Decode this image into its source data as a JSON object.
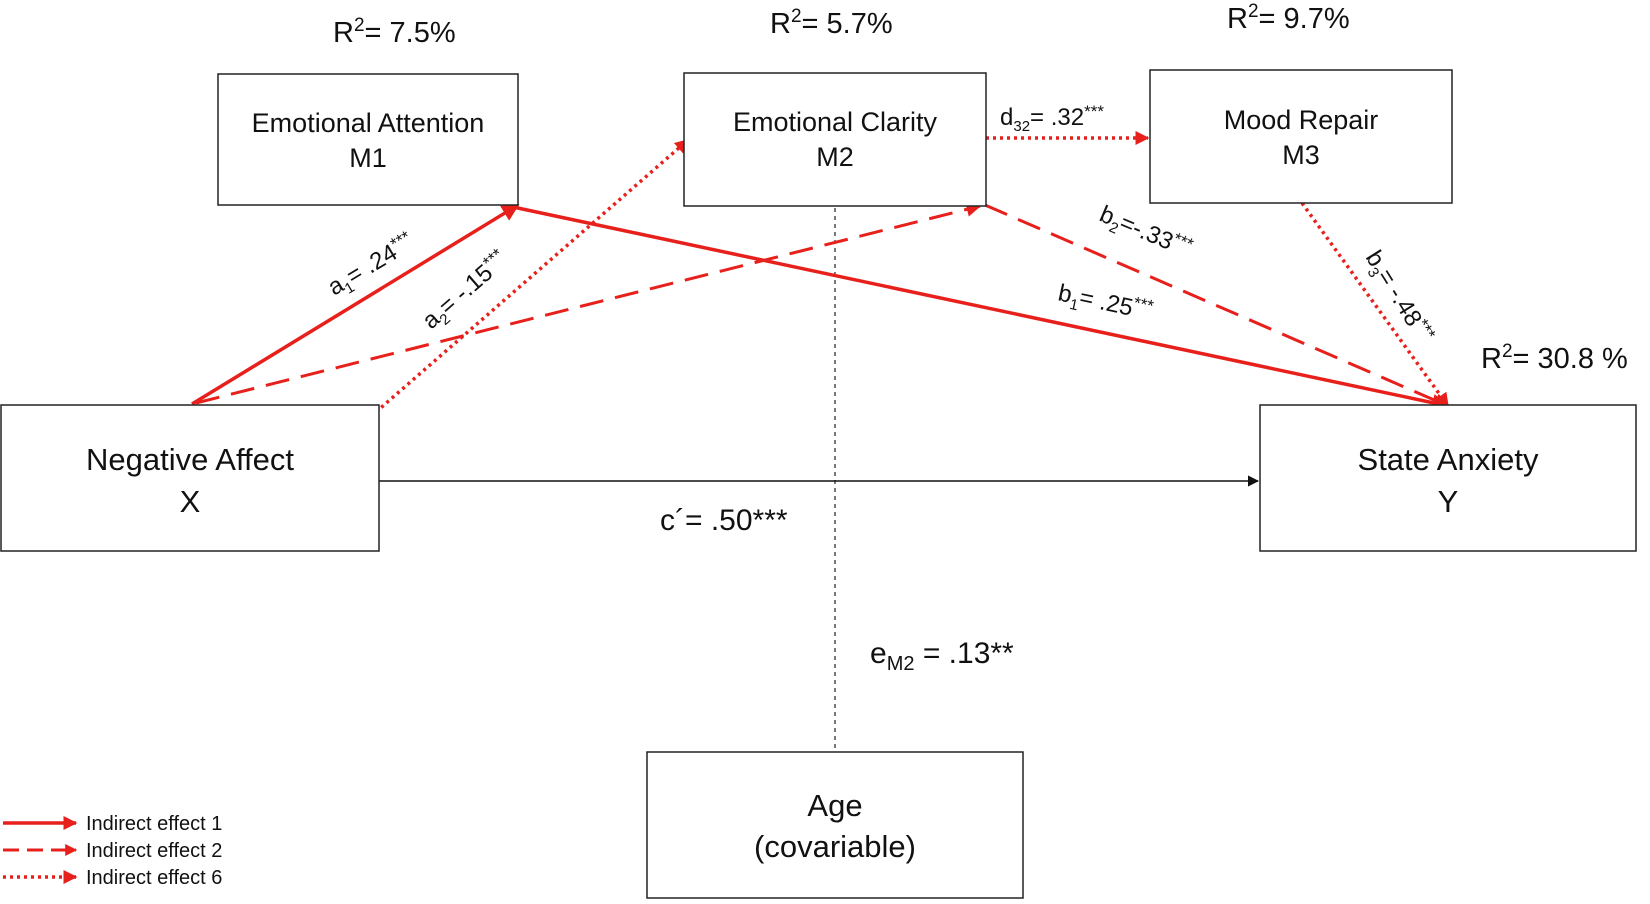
{
  "boxes": {
    "m1": {
      "title": "Emotional Attention",
      "sub": "M1"
    },
    "m2": {
      "title": "Emotional Clarity",
      "sub": "M2"
    },
    "m3": {
      "title": "Mood Repair",
      "sub": "M3"
    },
    "x": {
      "title": "Negative Affect",
      "sub": "X"
    },
    "y": {
      "title": "State Anxiety",
      "sub": "Y"
    },
    "age": {
      "title": "Age",
      "sub": "(covariable)"
    }
  },
  "r2": {
    "m1": {
      "prefix": "R",
      "sup": "2",
      "value": "= 7.5%"
    },
    "m2": {
      "prefix": "R",
      "sup": "2",
      "value": "= 5.7%"
    },
    "m3": {
      "prefix": "R",
      "sup": "2",
      "value": "= 9.7%"
    },
    "y": {
      "prefix": "R",
      "sup": "2",
      "value": "= 30.8 %"
    }
  },
  "paths": {
    "a1": {
      "sym": "a",
      "sub": "1",
      "value": "= .24",
      "stars": "***"
    },
    "a2": {
      "sym": "a",
      "sub": "2",
      "value": "= -.15",
      "stars": "***"
    },
    "b1": {
      "sym": "b",
      "sub": "1",
      "value": "= .25",
      "stars": "***"
    },
    "b2": {
      "sym": "b",
      "sub": "2",
      "value": "=-.33",
      "stars": "***"
    },
    "b3": {
      "sym": "b",
      "sub": "3",
      "value": "= -.48",
      "stars": "***"
    },
    "d32": {
      "sym": "d",
      "sub": "32",
      "value": "= .32",
      "stars": "***"
    },
    "c_prime": {
      "label": "c´= .50***"
    },
    "e_m2": {
      "sym": "e",
      "sub": "M2",
      "value": " = .13**"
    }
  },
  "legend": [
    {
      "label": "Indirect effect 1",
      "style": "solid"
    },
    {
      "label": "Indirect effect 2",
      "style": "dashed"
    },
    {
      "label": "Indirect effect 6",
      "style": "dotted"
    }
  ],
  "colors": {
    "effect": "#e8201c",
    "direct": "#111111",
    "covariate": "#333333"
  }
}
